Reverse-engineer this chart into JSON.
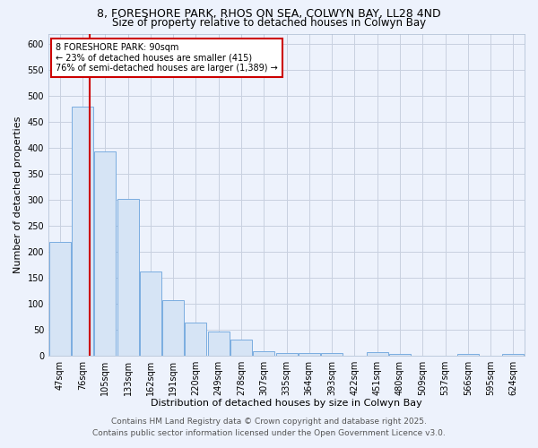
{
  "title_line1": "8, FORESHORE PARK, RHOS ON SEA, COLWYN BAY, LL28 4ND",
  "title_line2": "Size of property relative to detached houses in Colwyn Bay",
  "xlabel": "Distribution of detached houses by size in Colwyn Bay",
  "ylabel": "Number of detached properties",
  "categories": [
    "47sqm",
    "76sqm",
    "105sqm",
    "133sqm",
    "162sqm",
    "191sqm",
    "220sqm",
    "249sqm",
    "278sqm",
    "307sqm",
    "335sqm",
    "364sqm",
    "393sqm",
    "422sqm",
    "451sqm",
    "480sqm",
    "509sqm",
    "537sqm",
    "566sqm",
    "595sqm",
    "624sqm"
  ],
  "values": [
    218,
    480,
    393,
    302,
    162,
    106,
    63,
    46,
    30,
    8,
    5,
    5,
    5,
    0,
    6,
    3,
    0,
    0,
    3,
    0,
    3
  ],
  "bar_color": "#d6e4f5",
  "bar_edge_color": "#7aade0",
  "red_line_index": 1.3,
  "annotation_text": "8 FORESHORE PARK: 90sqm\n← 23% of detached houses are smaller (415)\n76% of semi-detached houses are larger (1,389) →",
  "annotation_box_color": "#ffffff",
  "annotation_box_edge_color": "#cc0000",
  "ylim": [
    0,
    620
  ],
  "yticks": [
    0,
    50,
    100,
    150,
    200,
    250,
    300,
    350,
    400,
    450,
    500,
    550,
    600
  ],
  "footer_line1": "Contains HM Land Registry data © Crown copyright and database right 2025.",
  "footer_line2": "Contains public sector information licensed under the Open Government Licence v3.0.",
  "background_color": "#edf2fc",
  "plot_bg_color": "#edf2fc",
  "grid_color": "#c8d0e0",
  "title_fontsize": 9,
  "subtitle_fontsize": 8.5,
  "axis_label_fontsize": 8,
  "tick_fontsize": 7,
  "annotation_fontsize": 7,
  "footer_fontsize": 6.5
}
